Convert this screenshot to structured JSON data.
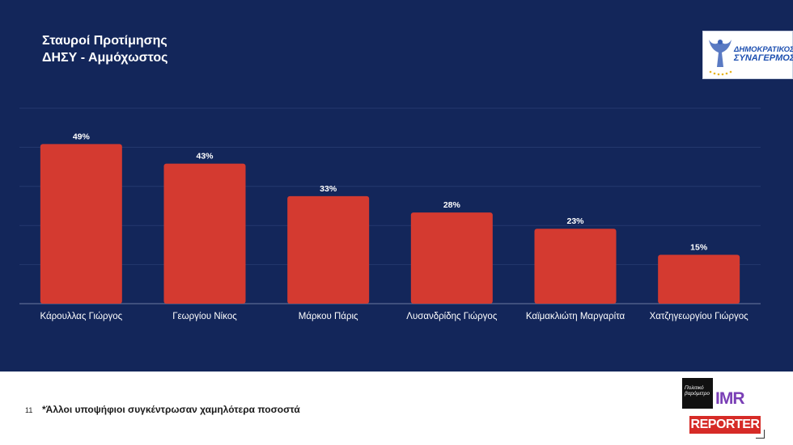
{
  "header": {
    "title_line1": "Σταυροί Προτίμησης",
    "title_line2": "ΔΗΣΥ - Αμμόχωστος"
  },
  "logo": {
    "line1": "ΔΗΜΟΚΡΑΤΙΚΟΣ",
    "line2": "ΣΥΝΑΓΕΡΜΟΣ"
  },
  "footer": {
    "page_number": "11",
    "note": "*Άλλοι υποψήφιοι συγκέντρωσαν χαμηλότερα ποσοστά"
  },
  "brands": {
    "pb_line1": "Πολιτικό",
    "pb_line2": "βαρόμετρο",
    "imr": "IMR",
    "reporter": "REPORTER"
  },
  "colors": {
    "background": "#13265a",
    "bar": "#d43a30",
    "text": "#ffffff"
  },
  "chart_data": {
    "type": "bar",
    "categories": [
      "Κάρουλλας Γιώργος",
      "Γεωργίου Νίκος",
      "Μάρκου Πάρις",
      "Λυσανδρίδης Γιώργος",
      "Καϊμακλιώτη Μαργαρίτα",
      "Χατζηγεωργίου Γιώργος"
    ],
    "values": [
      49,
      43,
      33,
      28,
      23,
      15
    ],
    "data_labels": [
      "49%",
      "43%",
      "33%",
      "28%",
      "23%",
      "15%"
    ],
    "title": "",
    "xlabel": "",
    "ylabel": "",
    "ylim": [
      0,
      60
    ],
    "grid": true,
    "gridlines": [
      0,
      12,
      24,
      36,
      48,
      60
    ],
    "legend": "none"
  }
}
